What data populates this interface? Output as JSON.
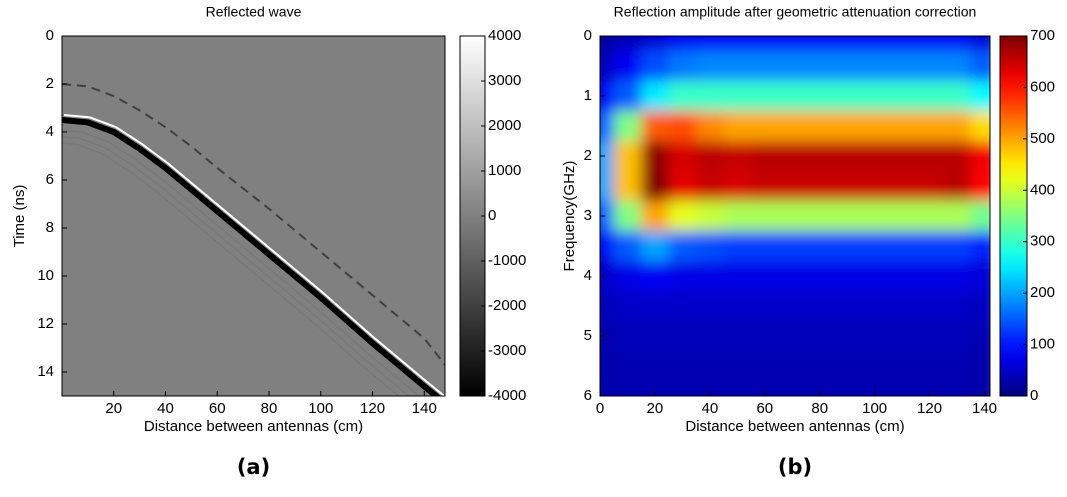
{
  "chart_data": [
    {
      "type": "line",
      "title": "Reflected wave",
      "xlabel": "Distance between antennas (cm)",
      "ylabel": "Time (ns)",
      "caption": "(a)",
      "x": [
        0,
        10,
        20,
        30,
        40,
        50,
        60,
        80,
        100,
        120,
        140,
        148
      ],
      "series": [
        {
          "color": "#000000",
          "values": [
            3.5,
            3.6,
            4.0,
            4.7,
            5.5,
            6.4,
            7.3,
            9.1,
            10.9,
            12.8,
            14.6,
            15.3
          ]
        },
        {
          "color": "#404040",
          "dash": true,
          "values": [
            2.0,
            2.1,
            2.5,
            3.1,
            3.8,
            4.6,
            5.5,
            7.2,
            9.0,
            10.8,
            12.6,
            13.7
          ]
        }
      ],
      "xlim": [
        0,
        148
      ],
      "xticks": [
        20,
        40,
        60,
        80,
        100,
        120,
        140
      ],
      "ylim": [
        0,
        15
      ],
      "yticks": [
        0,
        2,
        4,
        6,
        8,
        10,
        12,
        14
      ],
      "y_inverted": true,
      "colormap": "gray",
      "background_value": 0,
      "clim": [
        -4000,
        4000
      ],
      "cticks": [
        -4000,
        -3000,
        -2000,
        -1000,
        0,
        1000,
        2000,
        3000,
        4000
      ]
    },
    {
      "type": "heatmap",
      "title": "Reflection amplitude after geometric attenuation correction",
      "xlabel": "Distance between antennas (cm)",
      "ylabel": "Frequency(GHz)",
      "caption": "(b)",
      "x": [
        0,
        10,
        20,
        30,
        40,
        50,
        60,
        70,
        80,
        90,
        100,
        110,
        120,
        130,
        140
      ],
      "y": [
        0,
        0.5,
        1,
        1.5,
        2,
        2.5,
        3,
        3.5,
        4,
        4.5,
        5,
        5.5,
        6
      ],
      "z": [
        [
          20,
          40,
          60,
          80,
          80,
          80,
          80,
          80,
          80,
          80,
          80,
          80,
          80,
          80,
          60
        ],
        [
          40,
          80,
          140,
          170,
          180,
          180,
          180,
          180,
          180,
          180,
          180,
          180,
          180,
          180,
          150
        ],
        [
          80,
          150,
          250,
          300,
          300,
          300,
          300,
          300,
          300,
          300,
          300,
          300,
          300,
          300,
          260
        ],
        [
          150,
          350,
          550,
          560,
          520,
          500,
          500,
          500,
          500,
          500,
          500,
          500,
          500,
          500,
          460
        ],
        [
          200,
          480,
          690,
          640,
          660,
          650,
          660,
          660,
          660,
          660,
          660,
          660,
          660,
          660,
          620
        ],
        [
          200,
          480,
          700,
          630,
          650,
          640,
          650,
          650,
          650,
          650,
          650,
          650,
          650,
          660,
          610
        ],
        [
          150,
          350,
          500,
          420,
          400,
          380,
          380,
          380,
          380,
          380,
          380,
          380,
          380,
          380,
          340
        ],
        [
          80,
          150,
          200,
          150,
          140,
          130,
          130,
          130,
          130,
          130,
          130,
          130,
          130,
          130,
          110
        ],
        [
          50,
          70,
          80,
          70,
          70,
          70,
          70,
          70,
          70,
          70,
          70,
          70,
          70,
          70,
          60
        ],
        [
          40,
          50,
          50,
          50,
          50,
          50,
          50,
          50,
          50,
          50,
          50,
          50,
          50,
          50,
          45
        ],
        [
          30,
          40,
          40,
          40,
          40,
          40,
          40,
          40,
          40,
          40,
          40,
          40,
          40,
          40,
          35
        ],
        [
          30,
          35,
          35,
          35,
          35,
          35,
          35,
          35,
          35,
          35,
          35,
          35,
          35,
          35,
          30
        ],
        [
          30,
          35,
          35,
          35,
          35,
          35,
          35,
          35,
          35,
          35,
          35,
          35,
          35,
          35,
          30
        ]
      ],
      "xlim": [
        0,
        142
      ],
      "xticks": [
        0,
        20,
        40,
        60,
        80,
        100,
        120,
        140
      ],
      "ylim": [
        0,
        6
      ],
      "yticks": [
        0,
        1,
        2,
        3,
        4,
        5,
        6
      ],
      "y_inverted": true,
      "colormap": "jet",
      "clim": [
        0,
        700
      ],
      "cticks": [
        0,
        100,
        200,
        300,
        400,
        500,
        600,
        700
      ]
    }
  ]
}
